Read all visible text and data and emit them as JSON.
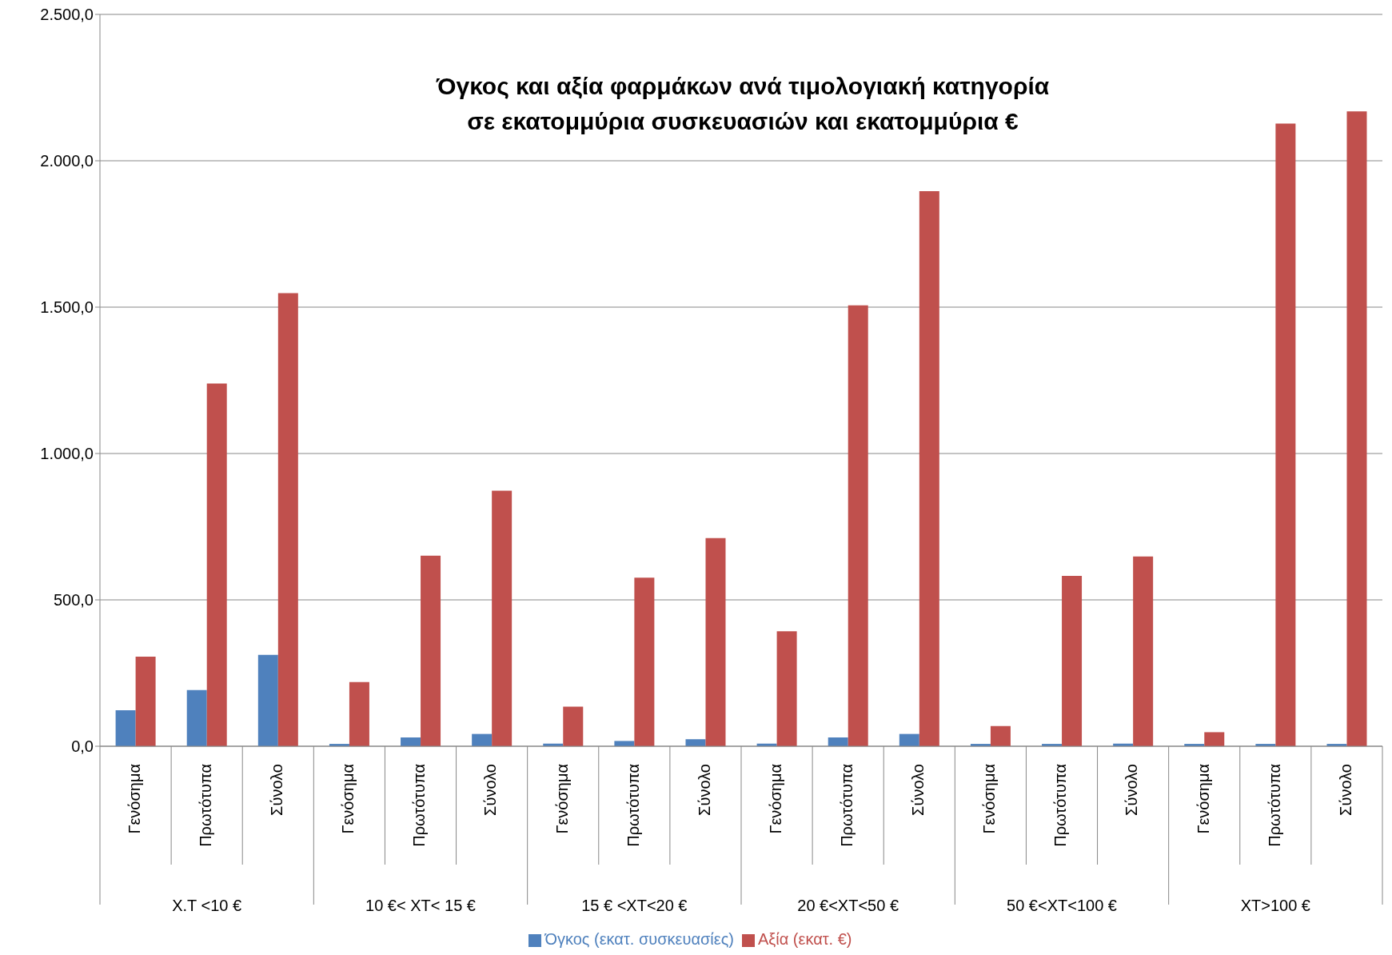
{
  "chart_data": {
    "type": "bar",
    "title": "Όγκος και αξία φαρμάκων ανά τιμολογιακή κατηγορία\nσε εκατομμύρια συσκευασιών και εκατομμύρια €",
    "categories": [
      "Γενόσημα",
      "Πρωτότυπα",
      "Σύνολο",
      "Γενόσημα",
      "Πρωτότυπα",
      "Σύνολο",
      "Γενόσημα",
      "Πρωτότυπα",
      "Σύνολο",
      "Γενόσημα",
      "Πρωτότυπα",
      "Σύνολο",
      "Γενόσημα",
      "Πρωτότυπα",
      "Σύνολο",
      "Γενόσημα",
      "Πρωτότυπα",
      "Σύνολο"
    ],
    "series": [
      {
        "name": "Όγκος (εκατ.  συσκευασίες)",
        "color": "#4f81bd",
        "values": [
          123,
          192,
          312,
          8,
          30,
          42,
          9,
          18,
          24,
          9,
          30,
          42,
          8,
          8,
          9,
          8,
          8,
          8
        ]
      },
      {
        "name": "Αξία (εκατ. €)",
        "color": "#c0504d",
        "values": [
          306,
          1239,
          1548,
          219,
          651,
          873,
          135,
          576,
          711,
          393,
          1506,
          1896,
          69,
          582,
          648,
          48,
          2127,
          2169
        ]
      }
    ],
    "annotations": [
      "Χ.Τ <10 €",
      "10 €< ΧΤ< 15 €",
      "15 € <ΧΤ<20 €",
      "20 €<ΧΤ<50 €",
      "50 €<ΧΤ<100 €",
      "ΧΤ>100 €"
    ],
    "ylim": [
      0,
      2500
    ],
    "yticks": [
      {
        "value": 0,
        "label": "0,0"
      },
      {
        "value": 500,
        "label": "500,0"
      },
      {
        "value": 1000,
        "label": "1.000,0"
      },
      {
        "value": 1500,
        "label": "1.500,0"
      },
      {
        "value": 2000,
        "label": "2.000,0"
      },
      {
        "value": 2500,
        "label": "2.500,0"
      }
    ],
    "grid": "y",
    "legend": "bottom"
  }
}
